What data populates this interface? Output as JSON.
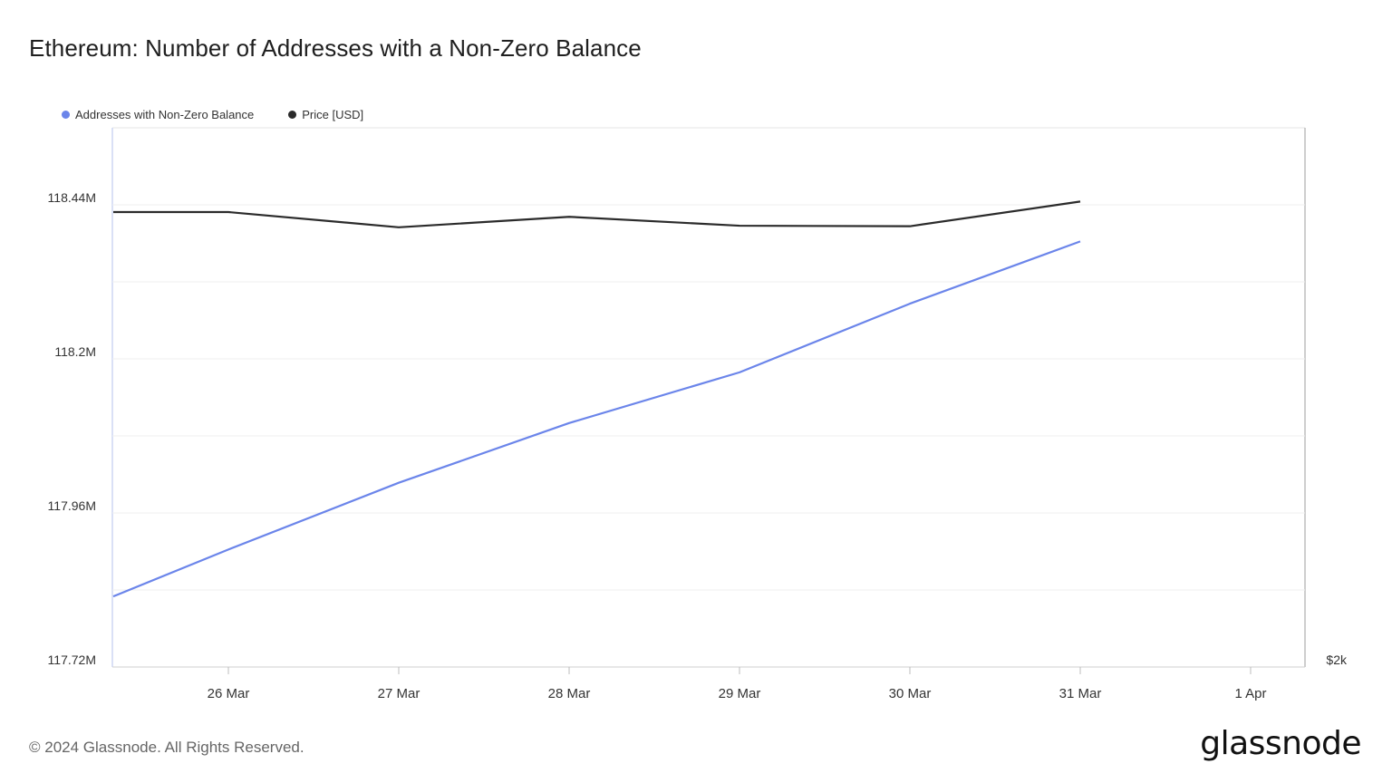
{
  "title": "Ethereum: Number of Addresses with a Non-Zero Balance",
  "footer": "© 2024 Glassnode. All Rights Reserved.",
  "brand": "glassnode",
  "chart_data": {
    "type": "line",
    "title": "Ethereum: Number of Addresses with a Non-Zero Balance",
    "x": [
      "25 Mar",
      "26 Mar",
      "27 Mar",
      "28 Mar",
      "29 Mar",
      "30 Mar",
      "31 Mar"
    ],
    "x_tick_labels": [
      "26 Mar",
      "27 Mar",
      "28 Mar",
      "29 Mar",
      "30 Mar",
      "31 Mar",
      "1 Apr"
    ],
    "y_left": {
      "ticks": [
        117.72,
        117.96,
        118.2,
        118.44
      ],
      "tick_labels": [
        "117.72M",
        "117.96M",
        "118.2M",
        "118.44M"
      ],
      "range": [
        117.72,
        118.56
      ]
    },
    "y_right": {
      "tick_labels": [
        "$2k"
      ]
    },
    "series": [
      {
        "name": "Addresses with Non-Zero Balance",
        "color": "#6b85ea",
        "axis": "left",
        "values": [
          117.83,
          117.903,
          118.007,
          118.1,
          118.179,
          118.286,
          118.383
        ]
      },
      {
        "name": "Price [USD]",
        "color": "#2b2b2b",
        "axis": "right",
        "values": [
          3608,
          3608,
          3579,
          3599,
          3582,
          3581,
          3628
        ]
      }
    ],
    "grid": true,
    "legend": "top-left"
  }
}
